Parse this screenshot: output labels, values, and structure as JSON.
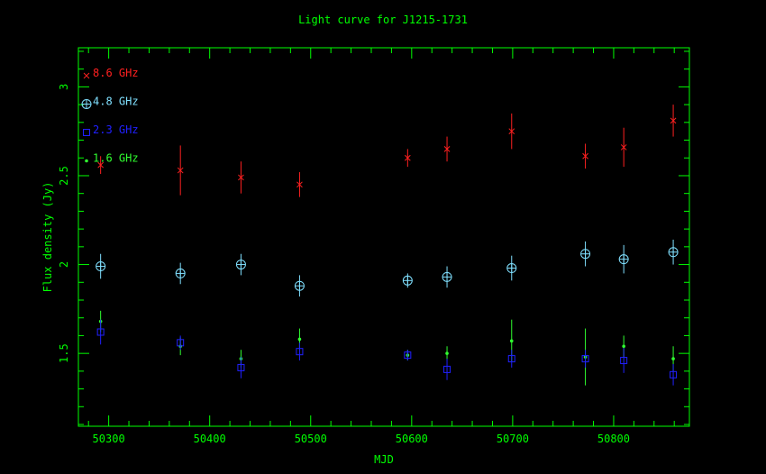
{
  "chart_data": {
    "type": "scatter",
    "title": "Light curve for J1215-1731",
    "xlabel": "MJD",
    "ylabel": "Flux density (Jy)",
    "xlim": [
      50270,
      50875
    ],
    "ylim": [
      1.09,
      3.22
    ],
    "x_ticks": [
      50300,
      50400,
      50500,
      50600,
      50700,
      50800
    ],
    "y_ticks": [
      1.5,
      2,
      2.5,
      3
    ],
    "y_tick_labels": [
      "1.5",
      "2",
      "2.5",
      "3"
    ],
    "grid": false,
    "legend_position": "top-left",
    "axis_color": "#00ff00",
    "series": [
      {
        "name": "8.6 GHz",
        "color": "#ff2020",
        "marker": "cross",
        "points": [
          {
            "x": 50292,
            "y": 2.56,
            "err": 0.05
          },
          {
            "x": 50371,
            "y": 2.53,
            "err": 0.14
          },
          {
            "x": 50431,
            "y": 2.49,
            "err": 0.09
          },
          {
            "x": 50489,
            "y": 2.45,
            "err": 0.07
          },
          {
            "x": 50596,
            "y": 2.6,
            "err": 0.05
          },
          {
            "x": 50635,
            "y": 2.65,
            "err": 0.07
          },
          {
            "x": 50699,
            "y": 2.75,
            "err": 0.1
          },
          {
            "x": 50772,
            "y": 2.61,
            "err": 0.07
          },
          {
            "x": 50810,
            "y": 2.66,
            "err": 0.11
          },
          {
            "x": 50859,
            "y": 2.81,
            "err": 0.09
          }
        ]
      },
      {
        "name": "4.8 GHz",
        "color": "#80e0ff",
        "marker": "circle-plus",
        "points": [
          {
            "x": 50292,
            "y": 1.99,
            "err": 0.07
          },
          {
            "x": 50371,
            "y": 1.95,
            "err": 0.06
          },
          {
            "x": 50431,
            "y": 2.0,
            "err": 0.06
          },
          {
            "x": 50489,
            "y": 1.88,
            "err": 0.06
          },
          {
            "x": 50596,
            "y": 1.91,
            "err": 0.04
          },
          {
            "x": 50635,
            "y": 1.93,
            "err": 0.06
          },
          {
            "x": 50699,
            "y": 1.98,
            "err": 0.07
          },
          {
            "x": 50772,
            "y": 2.06,
            "err": 0.07
          },
          {
            "x": 50810,
            "y": 2.03,
            "err": 0.08
          },
          {
            "x": 50859,
            "y": 2.07,
            "err": 0.07
          }
        ]
      },
      {
        "name": "2.3 GHz",
        "color": "#2020ff",
        "marker": "square",
        "points": [
          {
            "x": 50292,
            "y": 1.62,
            "err": 0.07
          },
          {
            "x": 50371,
            "y": 1.56,
            "err": 0.04
          },
          {
            "x": 50431,
            "y": 1.42,
            "err": 0.06
          },
          {
            "x": 50489,
            "y": 1.51,
            "err": 0.05
          },
          {
            "x": 50596,
            "y": 1.49,
            "err": 0.03
          },
          {
            "x": 50635,
            "y": 1.41,
            "err": 0.06
          },
          {
            "x": 50699,
            "y": 1.47,
            "err": 0.05
          },
          {
            "x": 50772,
            "y": 1.47,
            "err": 0.05
          },
          {
            "x": 50810,
            "y": 1.46,
            "err": 0.07
          },
          {
            "x": 50859,
            "y": 1.38,
            "err": 0.06
          }
        ]
      },
      {
        "name": "1.6 GHz",
        "color": "#30ff30",
        "marker": "dot",
        "points": [
          {
            "x": 50292,
            "y": 1.68,
            "err": 0.06
          },
          {
            "x": 50371,
            "y": 1.54,
            "err": 0.05
          },
          {
            "x": 50431,
            "y": 1.47,
            "err": 0.05
          },
          {
            "x": 50489,
            "y": 1.58,
            "err": 0.06
          },
          {
            "x": 50596,
            "y": 1.49,
            "err": 0.03
          },
          {
            "x": 50635,
            "y": 1.5,
            "err": 0.04
          },
          {
            "x": 50699,
            "y": 1.57,
            "err": 0.12
          },
          {
            "x": 50772,
            "y": 1.48,
            "err": 0.16
          },
          {
            "x": 50810,
            "y": 1.54,
            "err": 0.06
          },
          {
            "x": 50859,
            "y": 1.47,
            "err": 0.07
          }
        ]
      }
    ]
  }
}
